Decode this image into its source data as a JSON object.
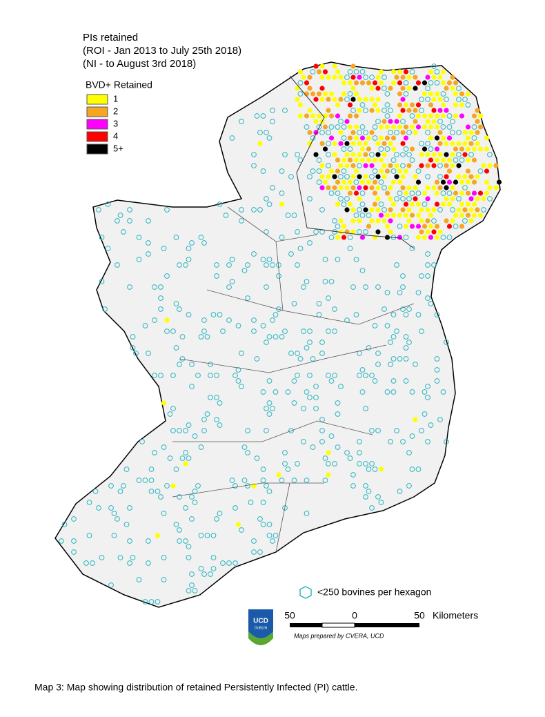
{
  "title_lines": [
    "PIs retained",
    "(ROI - Jan 2013 to July 25th 2018)",
    "(NI - to August 3rd 2018)"
  ],
  "legend": {
    "title": "BVD+ Retained",
    "items": [
      {
        "label": "1",
        "color": "#ffff00"
      },
      {
        "label": "2",
        "color": "#f5a623"
      },
      {
        "label": "3",
        "color": "#ff00ff"
      },
      {
        "label": "4",
        "color": "#ff0000"
      },
      {
        "label": "5+",
        "color": "#000000"
      }
    ]
  },
  "hexagon_note": "<250 bovines per hexagon",
  "scale_bar": {
    "labels": [
      "50",
      "0",
      "50"
    ],
    "unit": "Kilometers",
    "credit": "Maps prepared by CVERA, UCD"
  },
  "logo": {
    "text": "UCD",
    "subtext": "DUBLIN"
  },
  "caption": "Map 3:  Map showing distribution of retained Persistently Infected (PI) cattle."
}
